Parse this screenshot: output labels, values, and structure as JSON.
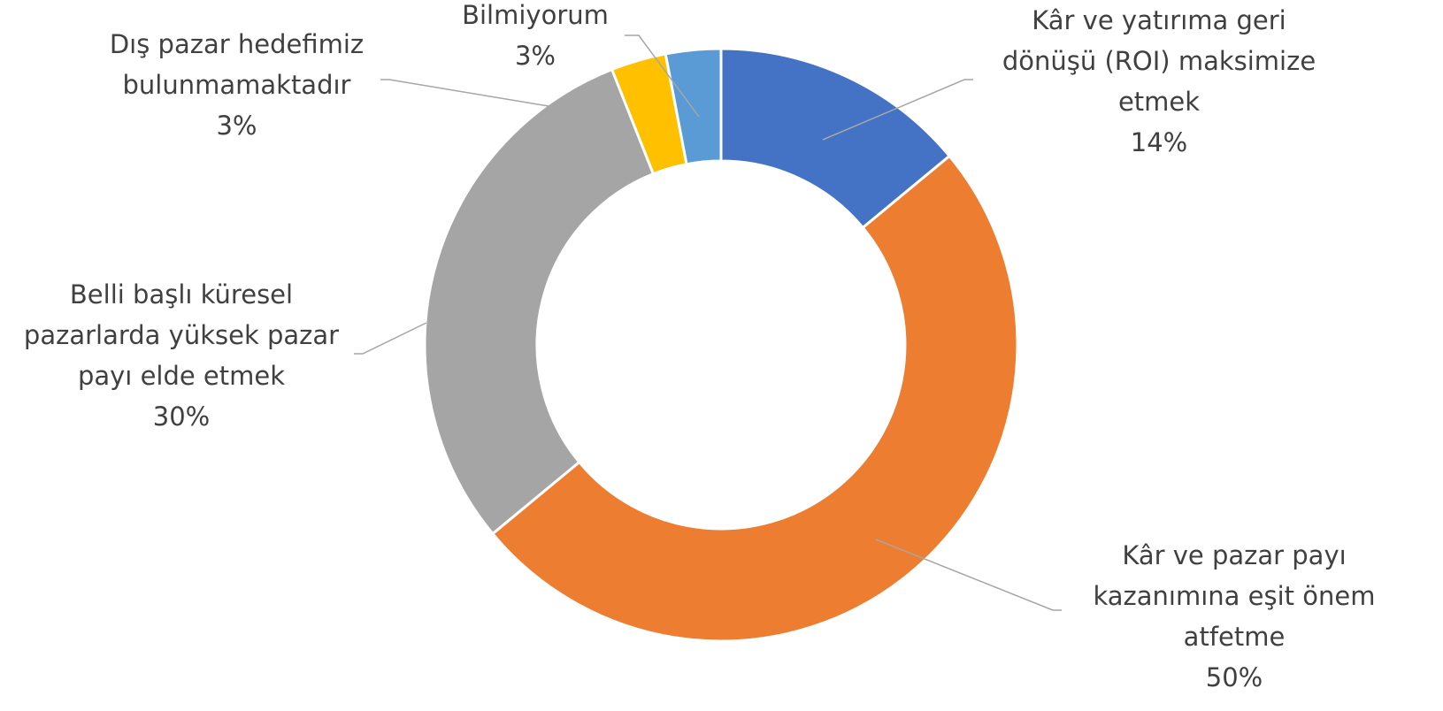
{
  "chart_data": {
    "type": "donut",
    "categories": [
      "Kâr ve yatırıma geri dönüşü (ROI) maksimize etmek",
      "Kâr ve pazar payı kazanımına eşit önem atfetme",
      "Belli başlı küresel pazarlarda yüksek pazar payı elde etmek",
      "Dış pazar hedefimiz bulunmamaktadır",
      "Bilmiyorum"
    ],
    "values": [
      14,
      50,
      30,
      3,
      3
    ],
    "value_labels": [
      "14%",
      "50%",
      "30%",
      "3%",
      "3%"
    ],
    "colors": [
      "#4472c4",
      "#ed7d31",
      "#a5a5a5",
      "#ffc000",
      "#5b9bd5"
    ]
  }
}
